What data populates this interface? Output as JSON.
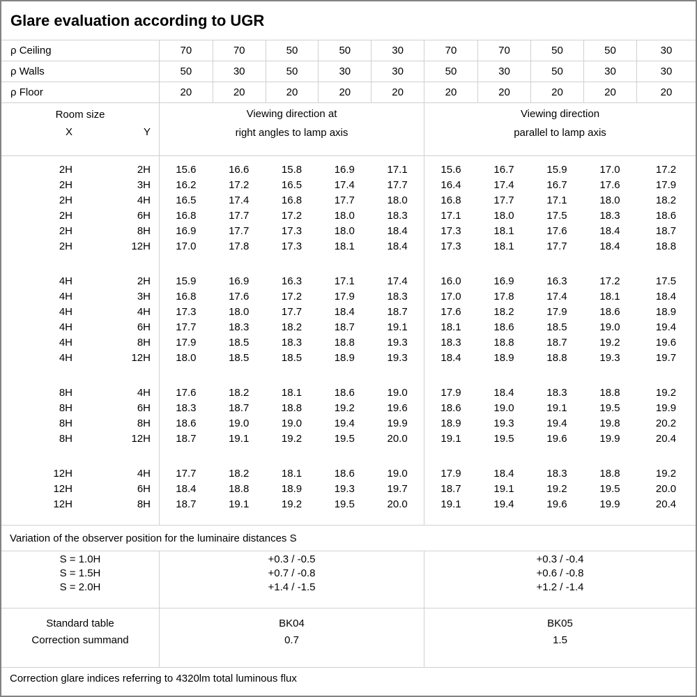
{
  "title": "Glare evaluation according to UGR",
  "reflectance_rows": [
    {
      "label": "ρ Ceiling",
      "values": [
        "70",
        "70",
        "50",
        "50",
        "30",
        "70",
        "70",
        "50",
        "50",
        "30"
      ]
    },
    {
      "label": "ρ Walls",
      "values": [
        "50",
        "30",
        "50",
        "30",
        "30",
        "50",
        "30",
        "50",
        "30",
        "30"
      ]
    },
    {
      "label": "ρ Floor",
      "values": [
        "20",
        "20",
        "20",
        "20",
        "20",
        "20",
        "20",
        "20",
        "20",
        "20"
      ]
    }
  ],
  "room_header": {
    "title": "Room size",
    "x_label": "X",
    "y_label": "Y"
  },
  "group_headers": {
    "right_angles": [
      "Viewing direction at",
      "right angles to lamp axis"
    ],
    "parallel": [
      "Viewing direction",
      "parallel to lamp axis"
    ]
  },
  "ugr_blocks": [
    {
      "rows": [
        {
          "x": "2H",
          "y": "2H",
          "right_angles": [
            "15.6",
            "16.6",
            "15.8",
            "16.9",
            "17.1"
          ],
          "parallel": [
            "15.6",
            "16.7",
            "15.9",
            "17.0",
            "17.2"
          ]
        },
        {
          "x": "2H",
          "y": "3H",
          "right_angles": [
            "16.2",
            "17.2",
            "16.5",
            "17.4",
            "17.7"
          ],
          "parallel": [
            "16.4",
            "17.4",
            "16.7",
            "17.6",
            "17.9"
          ]
        },
        {
          "x": "2H",
          "y": "4H",
          "right_angles": [
            "16.5",
            "17.4",
            "16.8",
            "17.7",
            "18.0"
          ],
          "parallel": [
            "16.8",
            "17.7",
            "17.1",
            "18.0",
            "18.2"
          ]
        },
        {
          "x": "2H",
          "y": "6H",
          "right_angles": [
            "16.8",
            "17.7",
            "17.2",
            "18.0",
            "18.3"
          ],
          "parallel": [
            "17.1",
            "18.0",
            "17.5",
            "18.3",
            "18.6"
          ]
        },
        {
          "x": "2H",
          "y": "8H",
          "right_angles": [
            "16.9",
            "17.7",
            "17.3",
            "18.0",
            "18.4"
          ],
          "parallel": [
            "17.3",
            "18.1",
            "17.6",
            "18.4",
            "18.7"
          ]
        },
        {
          "x": "2H",
          "y": "12H",
          "right_angles": [
            "17.0",
            "17.8",
            "17.3",
            "18.1",
            "18.4"
          ],
          "parallel": [
            "17.3",
            "18.1",
            "17.7",
            "18.4",
            "18.8"
          ]
        }
      ]
    },
    {
      "rows": [
        {
          "x": "4H",
          "y": "2H",
          "right_angles": [
            "15.9",
            "16.9",
            "16.3",
            "17.1",
            "17.4"
          ],
          "parallel": [
            "16.0",
            "16.9",
            "16.3",
            "17.2",
            "17.5"
          ]
        },
        {
          "x": "4H",
          "y": "3H",
          "right_angles": [
            "16.8",
            "17.6",
            "17.2",
            "17.9",
            "18.3"
          ],
          "parallel": [
            "17.0",
            "17.8",
            "17.4",
            "18.1",
            "18.4"
          ]
        },
        {
          "x": "4H",
          "y": "4H",
          "right_angles": [
            "17.3",
            "18.0",
            "17.7",
            "18.4",
            "18.7"
          ],
          "parallel": [
            "17.6",
            "18.2",
            "17.9",
            "18.6",
            "18.9"
          ]
        },
        {
          "x": "4H",
          "y": "6H",
          "right_angles": [
            "17.7",
            "18.3",
            "18.2",
            "18.7",
            "19.1"
          ],
          "parallel": [
            "18.1",
            "18.6",
            "18.5",
            "19.0",
            "19.4"
          ]
        },
        {
          "x": "4H",
          "y": "8H",
          "right_angles": [
            "17.9",
            "18.5",
            "18.3",
            "18.8",
            "19.3"
          ],
          "parallel": [
            "18.3",
            "18.8",
            "18.7",
            "19.2",
            "19.6"
          ]
        },
        {
          "x": "4H",
          "y": "12H",
          "right_angles": [
            "18.0",
            "18.5",
            "18.5",
            "18.9",
            "19.3"
          ],
          "parallel": [
            "18.4",
            "18.9",
            "18.8",
            "19.3",
            "19.7"
          ]
        }
      ]
    },
    {
      "rows": [
        {
          "x": "8H",
          "y": "4H",
          "right_angles": [
            "17.6",
            "18.2",
            "18.1",
            "18.6",
            "19.0"
          ],
          "parallel": [
            "17.9",
            "18.4",
            "18.3",
            "18.8",
            "19.2"
          ]
        },
        {
          "x": "8H",
          "y": "6H",
          "right_angles": [
            "18.3",
            "18.7",
            "18.8",
            "19.2",
            "19.6"
          ],
          "parallel": [
            "18.6",
            "19.0",
            "19.1",
            "19.5",
            "19.9"
          ]
        },
        {
          "x": "8H",
          "y": "8H",
          "right_angles": [
            "18.6",
            "19.0",
            "19.0",
            "19.4",
            "19.9"
          ],
          "parallel": [
            "18.9",
            "19.3",
            "19.4",
            "19.8",
            "20.2"
          ]
        },
        {
          "x": "8H",
          "y": "12H",
          "right_angles": [
            "18.7",
            "19.1",
            "19.2",
            "19.5",
            "20.0"
          ],
          "parallel": [
            "19.1",
            "19.5",
            "19.6",
            "19.9",
            "20.4"
          ]
        }
      ]
    },
    {
      "rows": [
        {
          "x": "12H",
          "y": "4H",
          "right_angles": [
            "17.7",
            "18.2",
            "18.1",
            "18.6",
            "19.0"
          ],
          "parallel": [
            "17.9",
            "18.4",
            "18.3",
            "18.8",
            "19.2"
          ]
        },
        {
          "x": "12H",
          "y": "6H",
          "right_angles": [
            "18.4",
            "18.8",
            "18.9",
            "19.3",
            "19.7"
          ],
          "parallel": [
            "18.7",
            "19.1",
            "19.2",
            "19.5",
            "20.0"
          ]
        },
        {
          "x": "12H",
          "y": "8H",
          "right_angles": [
            "18.7",
            "19.1",
            "19.2",
            "19.5",
            "20.0"
          ],
          "parallel": [
            "19.1",
            "19.4",
            "19.6",
            "19.9",
            "20.4"
          ]
        }
      ]
    }
  ],
  "variation_note": "Variation of the observer position for the luminaire distances S",
  "variation_rows": [
    {
      "label": "S = 1.0H",
      "right_angles": "+0.3 / -0.5",
      "parallel": "+0.3 / -0.4"
    },
    {
      "label": "S = 1.5H",
      "right_angles": "+0.7 / -0.8",
      "parallel": "+0.6 / -0.8"
    },
    {
      "label": "S = 2.0H",
      "right_angles": "+1.4 / -1.5",
      "parallel": "+1.2 / -1.4"
    }
  ],
  "standard_rows": [
    {
      "label": "Standard table",
      "right_angles": "BK04",
      "parallel": "BK05"
    },
    {
      "label": "Correction summand",
      "right_angles": "0.7",
      "parallel": "1.5"
    }
  ],
  "footer_note": "Correction glare indices referring to 4320lm total luminous flux",
  "colors": {
    "grid_line": "#d0d0d0",
    "outer_border": "#828282",
    "text": "#000000"
  }
}
